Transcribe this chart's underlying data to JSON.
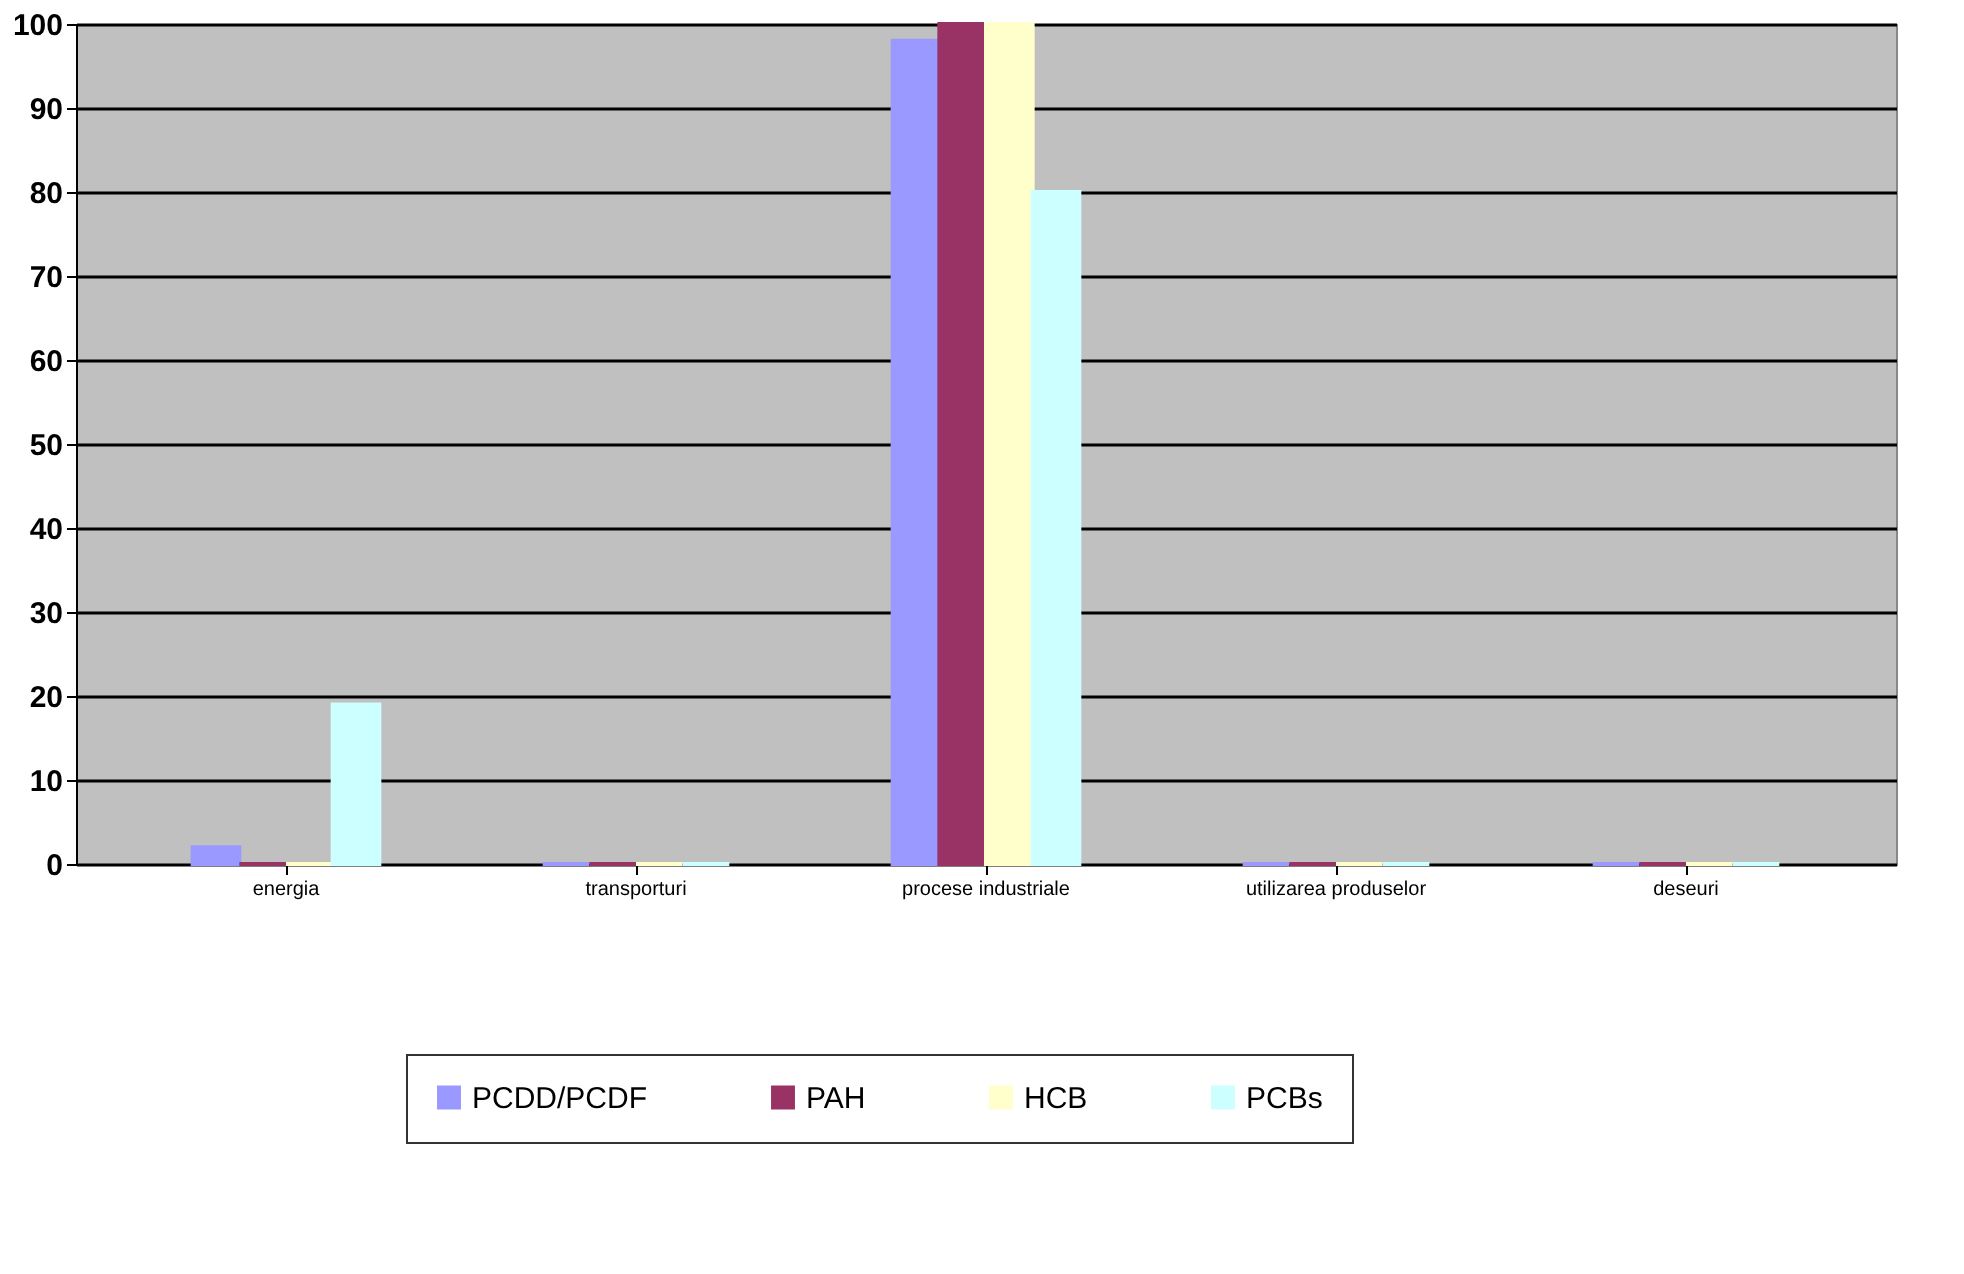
{
  "chart_data": {
    "type": "bar",
    "categories": [
      "energia",
      "transporturi",
      "procese industriale",
      "utilizarea produselor",
      "deseuri"
    ],
    "series": [
      {
        "name": "PCDD/PCDF",
        "color": "#9999ff",
        "values": [
          2,
          0,
          98,
          0,
          0
        ]
      },
      {
        "name": "PAH",
        "color": "#993366",
        "values": [
          0,
          0,
          100,
          0,
          0
        ]
      },
      {
        "name": "HCB",
        "color": "#ffffcc",
        "values": [
          0,
          0,
          100,
          0,
          0
        ]
      },
      {
        "name": "PCBs",
        "color": "#ccffff",
        "values": [
          19,
          0,
          80,
          0,
          0
        ]
      }
    ],
    "ylim": [
      0,
      100
    ],
    "yticks": [
      0,
      10,
      20,
      30,
      40,
      50,
      60,
      70,
      80,
      90,
      100
    ],
    "grid": "y",
    "legend": "bottom"
  }
}
